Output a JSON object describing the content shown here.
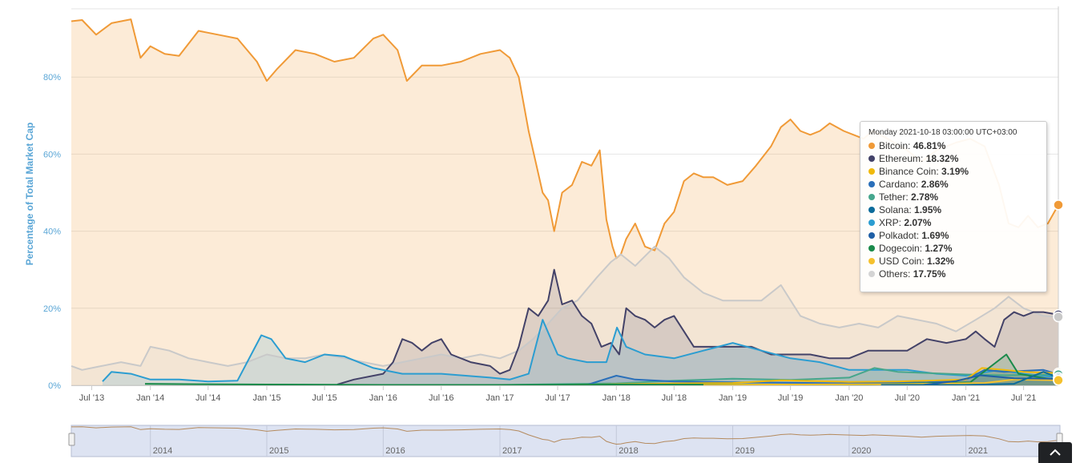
{
  "chart_data": {
    "type": "area",
    "ylabel": "Percentage of Total Market Cap",
    "ylim": [
      0,
      100
    ],
    "y_ticks": [
      0,
      20,
      40,
      60,
      80
    ],
    "y_tick_labels": [
      "0%",
      "20%",
      "40%",
      "60%",
      "80%"
    ],
    "x_ticks": [
      "2013-07-01",
      "2014-01-01",
      "2014-07-01",
      "2015-01-01",
      "2015-07-01",
      "2016-01-01",
      "2016-07-01",
      "2017-01-01",
      "2017-07-01",
      "2018-01-01",
      "2018-07-01",
      "2019-01-01",
      "2019-07-01",
      "2020-01-01",
      "2020-07-01",
      "2021-01-01",
      "2021-07-01"
    ],
    "x_tick_labels": [
      "Jul '13",
      "Jan '14",
      "Jul '14",
      "Jan '15",
      "Jul '15",
      "Jan '16",
      "Jul '16",
      "Jan '17",
      "Jul '17",
      "Jan '18",
      "Jul '18",
      "Jan '19",
      "Jul '19",
      "Jan '20",
      "Jul '20",
      "Jan '21",
      "Jul '21"
    ],
    "grid": true,
    "navigator_labels": [
      "2014",
      "2015",
      "2016",
      "2017",
      "2018",
      "2019",
      "2020",
      "2021"
    ],
    "series": [
      {
        "name": "Bitcoin",
        "color": "#f09a37",
        "x": [
          "2013-04-28",
          "2013-06-01",
          "2013-07-15",
          "2013-09-01",
          "2013-11-01",
          "2013-12-01",
          "2014-01-01",
          "2014-02-15",
          "2014-04-01",
          "2014-06-01",
          "2014-08-01",
          "2014-10-01",
          "2014-12-01",
          "2015-01-01",
          "2015-02-01",
          "2015-04-01",
          "2015-06-01",
          "2015-08-01",
          "2015-10-01",
          "2015-12-01",
          "2016-01-01",
          "2016-02-15",
          "2016-03-15",
          "2016-05-01",
          "2016-07-01",
          "2016-09-01",
          "2016-11-01",
          "2017-01-01",
          "2017-02-01",
          "2017-03-01",
          "2017-04-01",
          "2017-05-15",
          "2017-06-01",
          "2017-06-20",
          "2017-07-15",
          "2017-08-15",
          "2017-09-15",
          "2017-10-15",
          "2017-11-10",
          "2017-12-01",
          "2017-12-20",
          "2018-01-01",
          "2018-01-15",
          "2018-02-01",
          "2018-03-01",
          "2018-04-01",
          "2018-05-01",
          "2018-06-01",
          "2018-07-01",
          "2018-08-01",
          "2018-09-01",
          "2018-10-01",
          "2018-11-01",
          "2018-12-15",
          "2019-02-01",
          "2019-03-15",
          "2019-05-01",
          "2019-06-01",
          "2019-07-01",
          "2019-08-01",
          "2019-09-01",
          "2019-10-01",
          "2019-11-01",
          "2019-12-15",
          "2020-01-15",
          "2020-02-15",
          "2020-03-15",
          "2020-05-01",
          "2020-07-01",
          "2020-08-15",
          "2020-10-01",
          "2020-12-01",
          "2021-01-15",
          "2021-03-01",
          "2021-04-15",
          "2021-05-15",
          "2021-06-15",
          "2021-07-15",
          "2021-08-15",
          "2021-09-15",
          "2021-10-18"
        ],
        "values": [
          94.5,
          94.8,
          91,
          94,
          95,
          85,
          88,
          86,
          85.5,
          92,
          91,
          90,
          84,
          79,
          82,
          87,
          86,
          84,
          85,
          90,
          91,
          87,
          79,
          83,
          83,
          84,
          86,
          87,
          85,
          80,
          66,
          50,
          48,
          40,
          50,
          52,
          58,
          57,
          61,
          43,
          36,
          33,
          34,
          38,
          42,
          36,
          35,
          42,
          45,
          53,
          55,
          54,
          54,
          52,
          53,
          57,
          62,
          67,
          69,
          66,
          65,
          66,
          68,
          66,
          65,
          64,
          66,
          64,
          61,
          58,
          61,
          63,
          64,
          62,
          52,
          42,
          41,
          44,
          41,
          42,
          46.81
        ]
      },
      {
        "name": "Ethereum",
        "color": "#434268",
        "x": [
          "2015-08-10",
          "2015-10-01",
          "2016-01-01",
          "2016-02-01",
          "2016-03-01",
          "2016-04-01",
          "2016-05-01",
          "2016-06-01",
          "2016-07-01",
          "2016-08-01",
          "2016-10-01",
          "2016-12-01",
          "2017-01-01",
          "2017-02-01",
          "2017-03-01",
          "2017-04-01",
          "2017-05-01",
          "2017-06-01",
          "2017-06-20",
          "2017-07-15",
          "2017-08-15",
          "2017-09-15",
          "2017-10-15",
          "2017-11-15",
          "2017-12-15",
          "2018-01-10",
          "2018-02-01",
          "2018-03-01",
          "2018-04-01",
          "2018-05-01",
          "2018-06-01",
          "2018-07-01",
          "2018-08-01",
          "2018-09-01",
          "2018-10-01",
          "2018-11-01",
          "2019-01-01",
          "2019-03-01",
          "2019-05-01",
          "2019-07-01",
          "2019-09-01",
          "2019-11-01",
          "2020-01-01",
          "2020-03-01",
          "2020-05-01",
          "2020-07-01",
          "2020-09-01",
          "2020-11-01",
          "2021-01-01",
          "2021-02-01",
          "2021-03-01",
          "2021-04-01",
          "2021-05-01",
          "2021-06-01",
          "2021-07-01",
          "2021-08-01",
          "2021-09-01",
          "2021-10-18"
        ],
        "values": [
          0.2,
          1.5,
          3,
          6,
          12,
          11,
          9,
          11,
          12,
          8,
          6,
          5,
          3,
          4,
          10,
          20,
          18,
          22,
          30,
          21,
          22,
          18,
          16,
          10,
          11,
          8,
          20,
          18,
          17,
          15,
          17,
          18,
          14,
          10,
          10,
          10,
          10,
          10,
          8,
          8,
          8,
          7,
          7,
          9,
          9,
          9,
          12,
          11,
          12,
          14,
          12,
          10,
          17,
          19,
          18,
          19,
          19,
          18.32
        ]
      },
      {
        "name": "Binance Coin",
        "color": "#f0b90b",
        "x": [
          "2017-08-01",
          "2018-01-01",
          "2018-07-01",
          "2019-01-01",
          "2019-06-01",
          "2020-01-01",
          "2020-06-01",
          "2021-01-01",
          "2021-02-20",
          "2021-05-01",
          "2021-07-01",
          "2021-10-18"
        ],
        "values": [
          0.1,
          0.3,
          0.5,
          0.6,
          1.3,
          0.9,
          1,
          1.5,
          4.5,
          4,
          3.5,
          3.19
        ]
      },
      {
        "name": "Cardano",
        "color": "#2a6fb9",
        "x": [
          "2017-10-01",
          "2018-01-01",
          "2018-03-01",
          "2018-07-01",
          "2019-01-01",
          "2020-01-01",
          "2020-09-01",
          "2021-01-01",
          "2021-03-01",
          "2021-05-01",
          "2021-09-01",
          "2021-10-18"
        ],
        "values": [
          0.1,
          2.5,
          1.5,
          1,
          0.8,
          0.5,
          0.8,
          1.5,
          4,
          3.5,
          4,
          2.86
        ]
      },
      {
        "name": "Tether",
        "color": "#46a68c",
        "x": [
          "2017-01-01",
          "2018-01-01",
          "2018-07-01",
          "2019-01-01",
          "2019-07-01",
          "2020-01-01",
          "2020-03-20",
          "2020-06-01",
          "2021-01-01",
          "2021-05-01",
          "2021-10-18"
        ],
        "values": [
          0.1,
          0.5,
          1.2,
          1.7,
          1.4,
          2,
          4.5,
          3.5,
          2.8,
          2.6,
          2.78
        ]
      },
      {
        "name": "Solana",
        "color": "#0b6b9a",
        "x": [
          "2020-04-10",
          "2021-01-01",
          "2021-06-01",
          "2021-09-01",
          "2021-10-18"
        ],
        "values": [
          0.1,
          0.1,
          0.4,
          3.5,
          1.95
        ]
      },
      {
        "name": "XRP",
        "color": "#2b9dd1",
        "x": [
          "2013-08-04",
          "2013-09-01",
          "2013-11-01",
          "2014-01-01",
          "2014-04-01",
          "2014-07-01",
          "2014-10-01",
          "2014-12-15",
          "2015-01-15",
          "2015-03-01",
          "2015-05-01",
          "2015-07-01",
          "2015-09-01",
          "2015-12-01",
          "2016-03-01",
          "2016-07-01",
          "2016-12-01",
          "2017-02-01",
          "2017-04-01",
          "2017-05-15",
          "2017-07-01",
          "2017-08-01",
          "2017-10-01",
          "2017-12-01",
          "2018-01-03",
          "2018-02-01",
          "2018-04-01",
          "2018-07-01",
          "2018-10-01",
          "2019-01-01",
          "2019-04-01",
          "2019-07-01",
          "2019-10-01",
          "2020-01-01",
          "2020-04-01",
          "2020-07-01",
          "2020-10-01",
          "2021-01-01",
          "2021-04-15",
          "2021-07-01",
          "2021-10-18"
        ],
        "values": [
          1,
          3.5,
          3,
          1.5,
          1.5,
          1,
          1.2,
          13,
          12,
          7,
          6,
          8,
          7.5,
          4.5,
          3,
          3,
          2,
          1.5,
          3,
          17,
          8,
          7,
          6,
          6,
          15,
          10,
          8,
          7,
          9,
          11,
          9,
          7,
          6,
          4,
          4,
          4,
          3,
          2.5,
          4,
          3,
          2.07
        ]
      },
      {
        "name": "Polkadot",
        "color": "#1f5fa6",
        "x": [
          "2020-08-20",
          "2020-12-01",
          "2021-02-15",
          "2021-06-01",
          "2021-10-18"
        ],
        "values": [
          0.1,
          1.1,
          2.6,
          1.8,
          1.69
        ]
      },
      {
        "name": "Dogecoin",
        "color": "#1a8a4a",
        "x": [
          "2013-12-15",
          "2014-06-01",
          "2015-01-01",
          "2016-01-01",
          "2017-01-01",
          "2018-01-01",
          "2019-01-01",
          "2020-01-01",
          "2021-01-15",
          "2021-05-08",
          "2021-06-15",
          "2021-10-18"
        ],
        "values": [
          0.4,
          0.3,
          0.2,
          0.1,
          0.1,
          0.2,
          0.2,
          0.1,
          0.8,
          8,
          3,
          1.27
        ]
      },
      {
        "name": "USD Coin",
        "color": "#f5c12e",
        "x": [
          "2018-10-01",
          "2019-06-01",
          "2020-06-01",
          "2020-12-01",
          "2021-03-01",
          "2021-06-01",
          "2021-10-18"
        ],
        "values": [
          0.1,
          0.2,
          0.3,
          0.5,
          0.6,
          1.5,
          1.32
        ]
      },
      {
        "name": "Others",
        "color": "#c9c9c9",
        "x": [
          "2013-04-28",
          "2013-06-01",
          "2013-08-01",
          "2013-10-01",
          "2013-12-01",
          "2014-01-01",
          "2014-03-01",
          "2014-05-01",
          "2014-07-01",
          "2014-09-01",
          "2014-11-01",
          "2015-01-01",
          "2015-03-01",
          "2015-05-01",
          "2015-07-01",
          "2015-09-01",
          "2015-11-01",
          "2016-01-01",
          "2016-03-01",
          "2016-05-01",
          "2016-07-01",
          "2016-09-01",
          "2016-11-01",
          "2017-01-01",
          "2017-03-01",
          "2017-04-15",
          "2017-06-01",
          "2017-07-15",
          "2017-09-01",
          "2017-11-01",
          "2017-12-15",
          "2018-01-15",
          "2018-03-01",
          "2018-05-01",
          "2018-06-15",
          "2018-08-01",
          "2018-10-01",
          "2018-12-01",
          "2019-02-01",
          "2019-04-01",
          "2019-06-01",
          "2019-08-01",
          "2019-10-01",
          "2019-12-01",
          "2020-02-01",
          "2020-04-01",
          "2020-06-01",
          "2020-08-01",
          "2020-10-01",
          "2020-12-01",
          "2021-02-01",
          "2021-04-01",
          "2021-05-15",
          "2021-07-01",
          "2021-09-01",
          "2021-10-18"
        ],
        "values": [
          5,
          4,
          5,
          6,
          5,
          10,
          9,
          7,
          6,
          5,
          6,
          8,
          7,
          7,
          8,
          7,
          6,
          5,
          6,
          7,
          8,
          7,
          8,
          7,
          9,
          12,
          16,
          20,
          22,
          28,
          32,
          34,
          31,
          36,
          33,
          28,
          24,
          22,
          22,
          22,
          26,
          18,
          16,
          15,
          16,
          15,
          18,
          17,
          16,
          14,
          17,
          20,
          23,
          20,
          18,
          17.75
        ]
      }
    ]
  },
  "tooltip": {
    "header": "Monday 2021-10-18 03:00:00 UTC+03:00",
    "rows": [
      {
        "name": "Bitcoin",
        "value": "46.81%",
        "color": "#f09a37"
      },
      {
        "name": "Ethereum",
        "value": "18.32%",
        "color": "#434268"
      },
      {
        "name": "Binance Coin",
        "value": "3.19%",
        "color": "#f0b90b"
      },
      {
        "name": "Cardano",
        "value": "2.86%",
        "color": "#2a6fb9"
      },
      {
        "name": "Tether",
        "value": "2.78%",
        "color": "#46a68c"
      },
      {
        "name": "Solana",
        "value": "1.95%",
        "color": "#0b6b9a"
      },
      {
        "name": "XRP",
        "value": "2.07%",
        "color": "#2b9dd1"
      },
      {
        "name": "Polkadot",
        "value": "1.69%",
        "color": "#1f5fa6"
      },
      {
        "name": "Dogecoin",
        "value": "1.27%",
        "color": "#1a8a4a"
      },
      {
        "name": "USD Coin",
        "value": "1.32%",
        "color": "#f5c12e"
      },
      {
        "name": "Others",
        "value": "17.75%",
        "color": "#d4d4d4"
      }
    ]
  },
  "scroll_top_button": {
    "icon": "chevron-up-icon"
  }
}
